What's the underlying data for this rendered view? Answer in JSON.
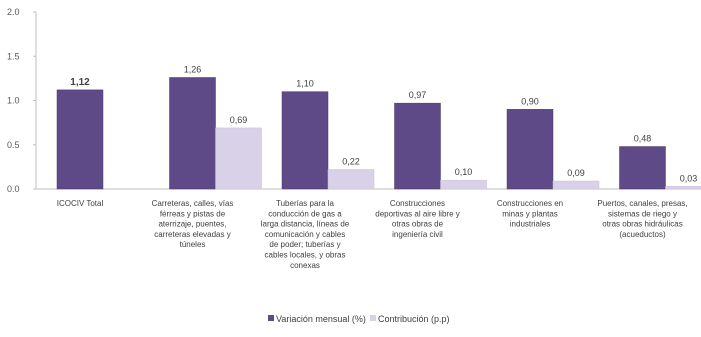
{
  "chart_data": {
    "type": "bar",
    "title": "",
    "xlabel": "",
    "ylabel": "",
    "ylim": [
      0,
      2
    ],
    "yticks": [
      "0.0",
      "0.5",
      "1.0",
      "1.5",
      "2.0"
    ],
    "categories": [
      [
        "ICOCIV Total"
      ],
      [
        "Carreteras, calles, vías",
        "férreas y pistas de",
        "aterrizaje, puentes,",
        "carreteras elevadas y",
        "túneles"
      ],
      [
        "Tuberías para la",
        "conducción de gas a",
        "larga distancia, líneas de",
        "comunicación y cables",
        "de poder; tuberías y",
        "cables locales, y obras",
        "conexas"
      ],
      [
        "Construcciones",
        "deportivas al aire libre y",
        "otras obras de",
        "ingeniería civil"
      ],
      [
        "Construcciones  en",
        "minas y plantas",
        "industriales"
      ],
      [
        "Puertos, canales, presas,",
        "sistemas de riego y",
        "otras obras hidráulicas",
        "(acueductos)"
      ]
    ],
    "series": [
      {
        "name": "Variación mensual (%)",
        "color": "#5e4a87",
        "values": [
          1.12,
          1.26,
          1.1,
          0.97,
          0.9,
          0.48
        ],
        "labels": [
          "1,12",
          "1,26",
          "1,10",
          "0,97",
          "0,90",
          "0,48"
        ]
      },
      {
        "name": "Contribución (p.p)",
        "color": "#d9d1e8",
        "values": [
          null,
          0.69,
          0.22,
          0.1,
          0.09,
          0.03
        ],
        "labels": [
          null,
          "0,69",
          "0,22",
          "0,10",
          "0,09",
          "0,03"
        ]
      }
    ],
    "legend_position": "bottom-center",
    "grid": false
  }
}
